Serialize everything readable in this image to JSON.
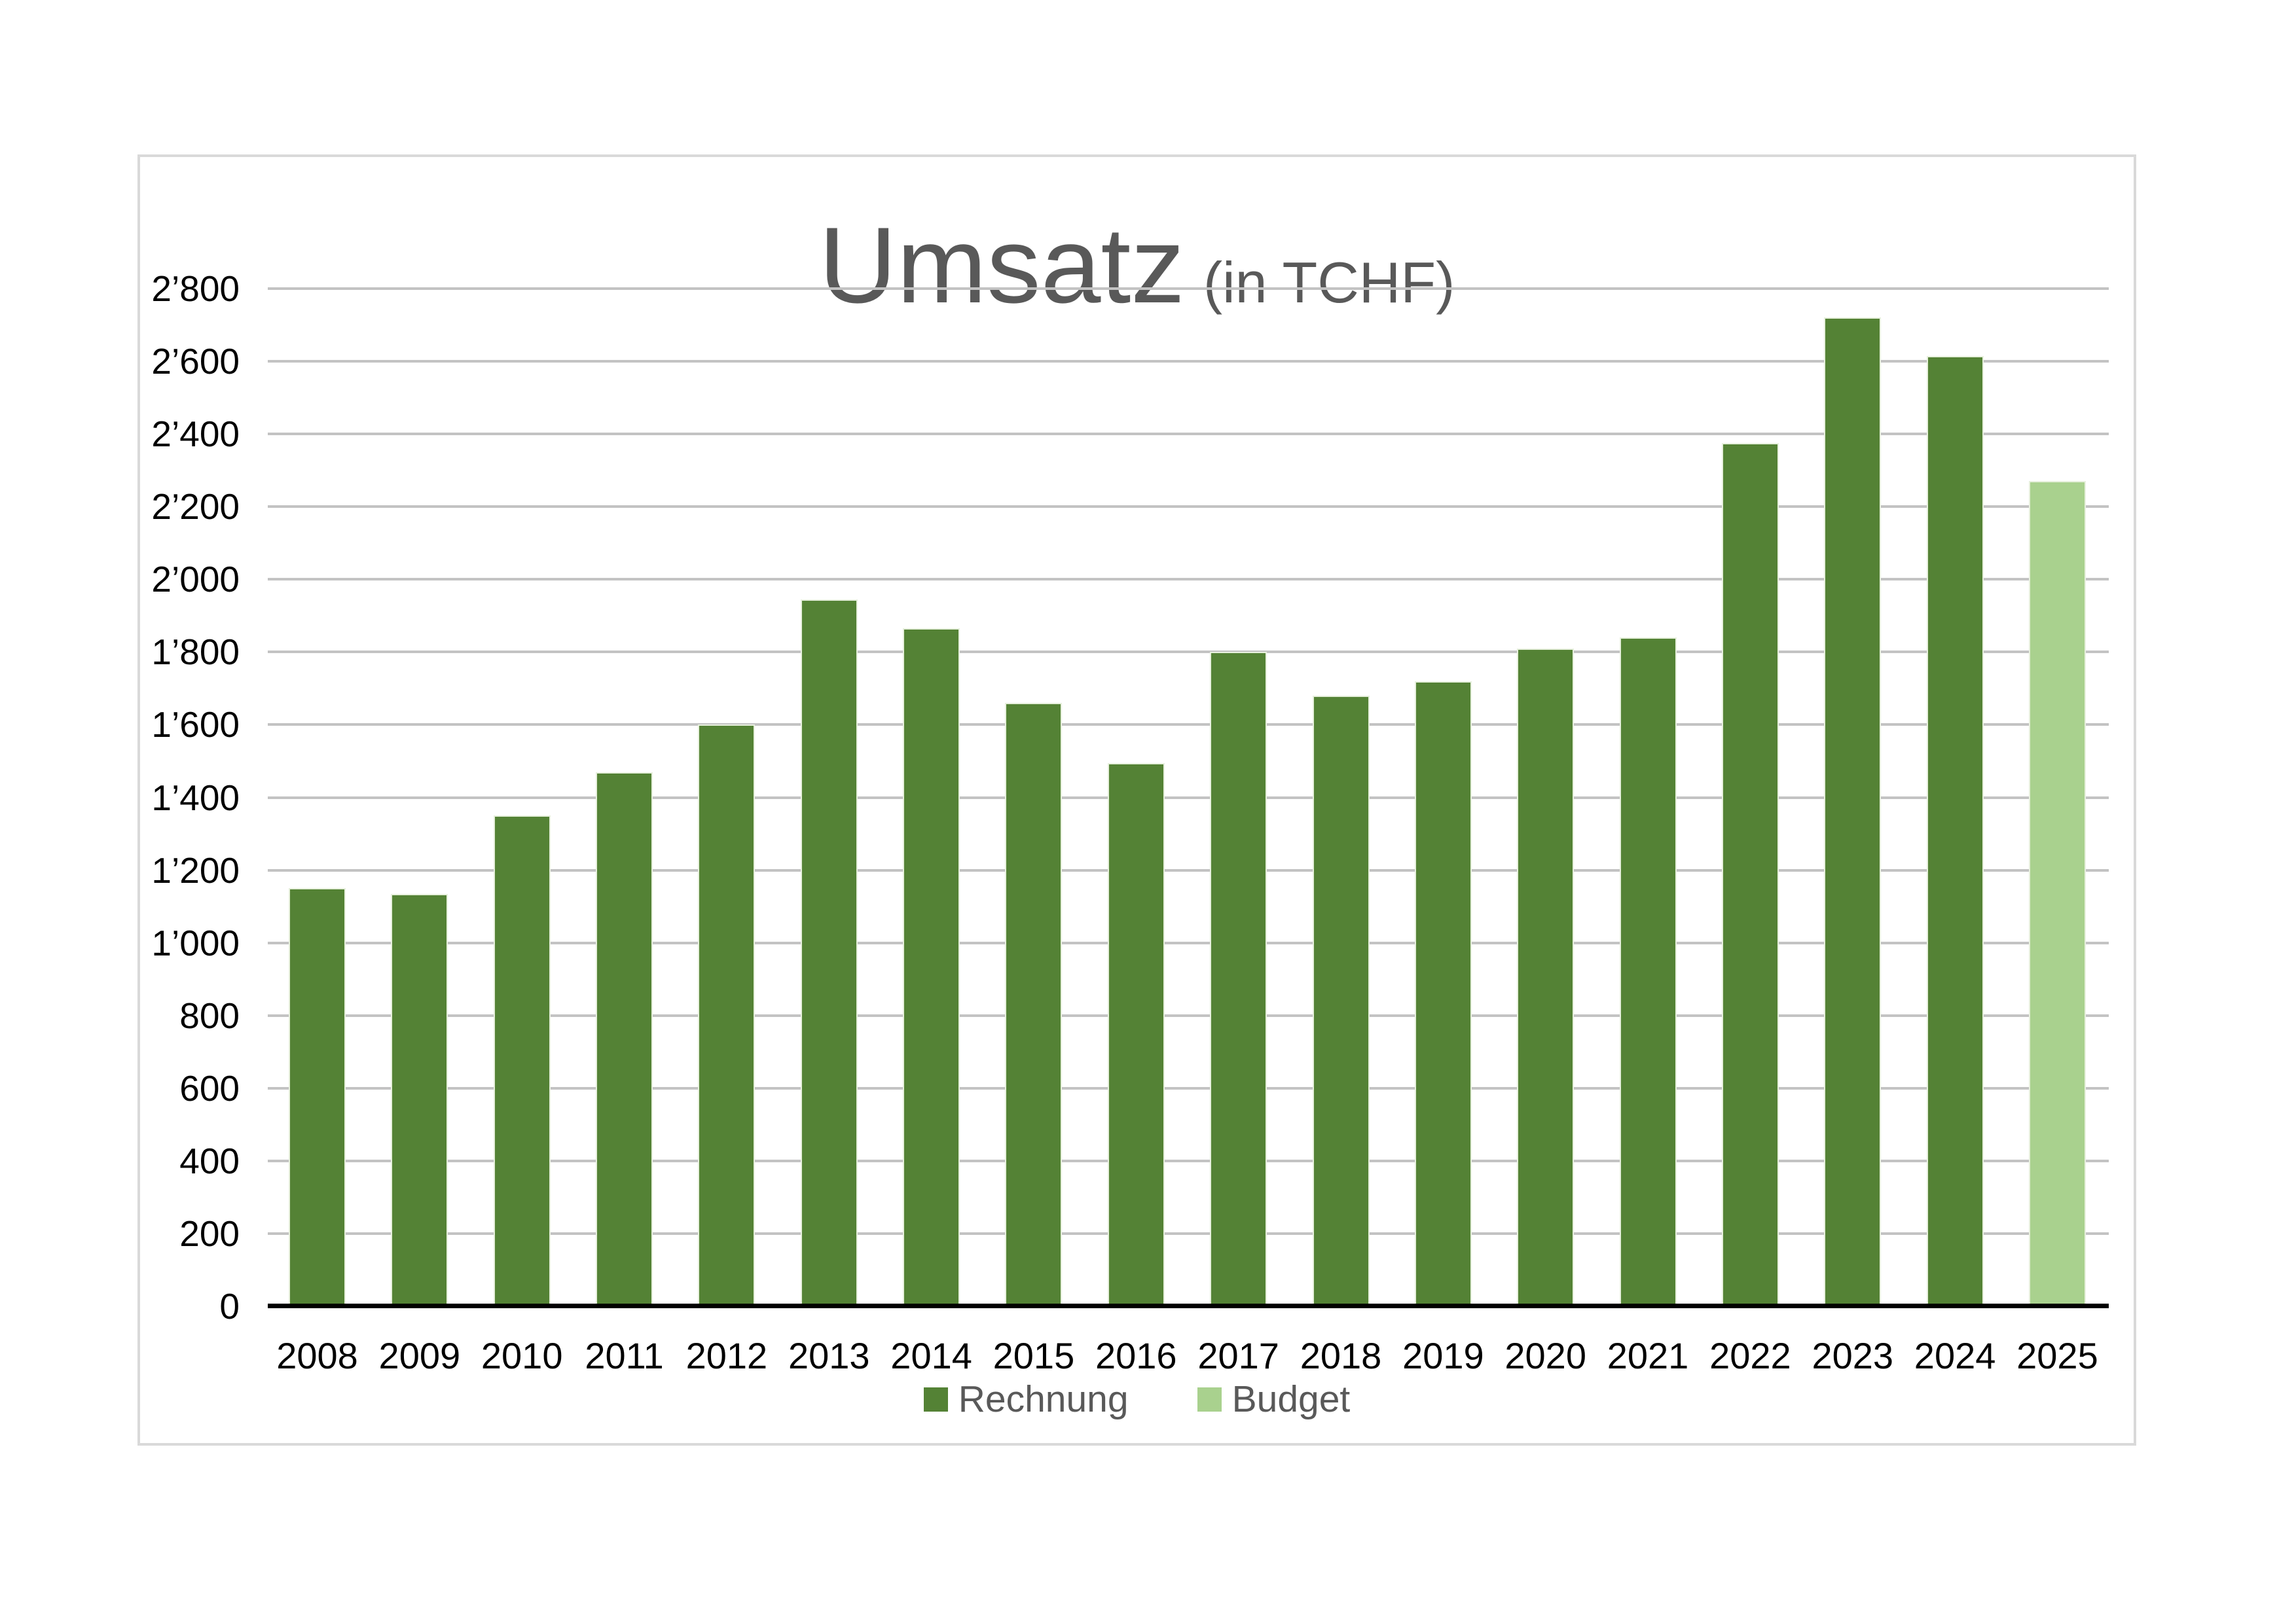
{
  "chart": {
    "title": "Umsatz",
    "title_suffix": "(in TCHF)",
    "legend": [
      {
        "label": "Rechnung",
        "color": "#548235"
      },
      {
        "label": "Budget",
        "color": "#A9D18E"
      }
    ]
  },
  "chart_data": {
    "type": "bar",
    "title": "Umsatz (in TCHF)",
    "categories": [
      "2008",
      "2009",
      "2010",
      "2011",
      "2012",
      "2013",
      "2014",
      "2015",
      "2016",
      "2017",
      "2018",
      "2019",
      "2020",
      "2021",
      "2022",
      "2023",
      "2024",
      "2025"
    ],
    "series": [
      {
        "name": "Rechnung",
        "color": "#548235",
        "values": [
          1150,
          1135,
          1350,
          1470,
          1600,
          1945,
          1865,
          1660,
          1495,
          1800,
          1680,
          1720,
          1810,
          1840,
          2375,
          2720,
          2615,
          null
        ]
      },
      {
        "name": "Budget",
        "color": "#A9D18E",
        "values": [
          null,
          null,
          null,
          null,
          null,
          null,
          null,
          null,
          null,
          null,
          null,
          null,
          null,
          null,
          null,
          null,
          null,
          2270
        ]
      }
    ],
    "xlabel": "",
    "ylabel": "",
    "ylim": [
      0,
      2800
    ],
    "ytick_step": 200,
    "ytick_labels": [
      "0",
      "200",
      "400",
      "600",
      "800",
      "1’000",
      "1’200",
      "1’400",
      "1’600",
      "1’800",
      "2’000",
      "2’200",
      "2’400",
      "2’600",
      "2’800"
    ],
    "grid": true,
    "gridline_color": "#c3c3c3",
    "axis_color": "#000000",
    "tick_label_color": "#000000",
    "title_color": "#595959",
    "legend_position": "bottom"
  }
}
